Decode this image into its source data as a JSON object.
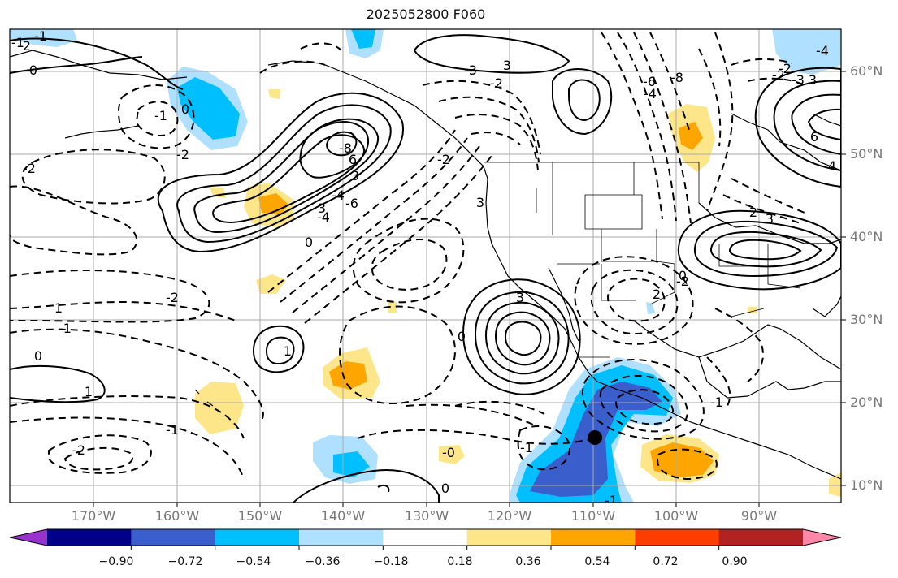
{
  "title": "2025052800 F060",
  "lat_labels": [
    "60°N",
    "50°N",
    "40°N",
    "30°N",
    "20°N",
    "10°N"
  ],
  "lon_labels": [
    "170°W",
    "160°W",
    "150°W",
    "140°W",
    "130°W",
    "120°W",
    "110°W",
    "100°W",
    "90°W"
  ],
  "colorbar": {
    "ticks": [
      "−0.90",
      "−0.72",
      "−0.54",
      "−0.36",
      "−0.18",
      "0.18",
      "0.36",
      "0.54",
      "0.72",
      "0.90"
    ],
    "colors": [
      "#9932cc",
      "#00008b",
      "#3a5fcd",
      "#00bfff",
      "#b0e0ff",
      "#ffffff",
      "#fde68a",
      "#ffa500",
      "#ff3d00",
      "#b22222",
      "#ff88aa"
    ]
  },
  "contour_labels": [
    {
      "text": "-2"
    },
    {
      "text": "-1"
    },
    {
      "text": "0"
    },
    {
      "text": "-2"
    },
    {
      "text": "-1"
    },
    {
      "text": "0"
    },
    {
      "text": "-2"
    },
    {
      "text": "-1"
    },
    {
      "text": "3"
    },
    {
      "text": "6"
    },
    {
      "text": "-8"
    },
    {
      "text": "-6"
    },
    {
      "text": "-4"
    },
    {
      "text": "3"
    },
    {
      "text": "-4"
    },
    {
      "text": "-2"
    },
    {
      "text": "-3"
    },
    {
      "text": "3"
    },
    {
      "text": "-2"
    },
    {
      "text": "0"
    },
    {
      "text": "-1"
    },
    {
      "text": "1"
    },
    {
      "text": "0"
    },
    {
      "text": "1"
    },
    {
      "text": "-1"
    },
    {
      "text": "-2"
    },
    {
      "text": "-0"
    },
    {
      "text": "-1"
    },
    {
      "text": "0"
    },
    {
      "text": "-1"
    },
    {
      "text": "-2"
    },
    {
      "text": "3"
    },
    {
      "text": "0"
    },
    {
      "text": "1"
    },
    {
      "text": "2"
    },
    {
      "text": "-2"
    },
    {
      "text": "0"
    },
    {
      "text": "3"
    },
    {
      "text": "-6"
    },
    {
      "text": "-8"
    },
    {
      "text": "-4"
    },
    {
      "text": "4"
    },
    {
      "text": "6"
    },
    {
      "text": "3"
    },
    {
      "text": "-2"
    },
    {
      "text": "2"
    },
    {
      "text": "3"
    },
    {
      "text": "-1"
    },
    {
      "text": "-4"
    },
    {
      "text": "-3"
    },
    {
      "text": "-2"
    }
  ]
}
